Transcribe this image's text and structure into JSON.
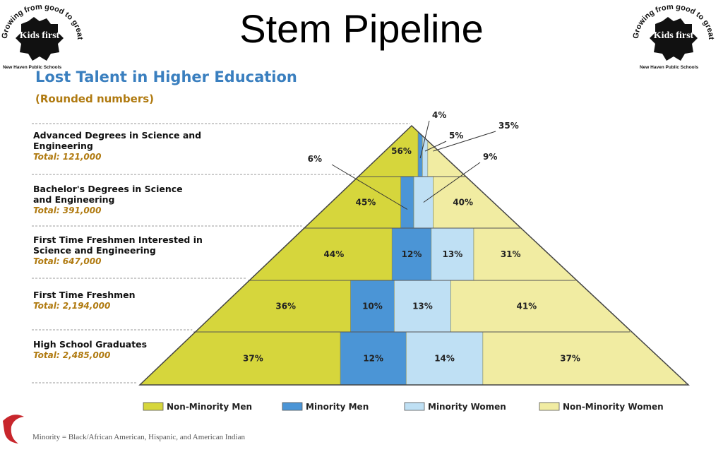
{
  "slide_title": "Stem Pipeline",
  "logo": {
    "tagline": "Growing from good to great",
    "name": "Kids first",
    "district": "New Haven Public Schools"
  },
  "footnote": "Minority = Black/African American, Hispanic, and American Indian",
  "chart_data": {
    "type": "pyramid",
    "title": "Lost Talent in Higher Education",
    "subtitle": "(Rounded numbers)",
    "categories": [
      "Advanced Degrees in Science and Engineering",
      "Bachelor's Degrees in Science and Engineering",
      "First Time Freshmen Interested in Science and Engineering",
      "First Time Freshmen",
      "High School Graduates"
    ],
    "totals": {
      "values": [
        121000,
        391000,
        647000,
        2194000,
        2485000
      ],
      "value_labels": [
        "Total: 121,000",
        "Total: 391,000",
        "Total: 647,000",
        "Total: 2,194,000",
        "Total: 2,485,000"
      ]
    },
    "series": [
      {
        "name": "Non-Minority Men",
        "color": "#d6d63c",
        "values": [
          56,
          45,
          44,
          36,
          37
        ],
        "value_labels": [
          "56%",
          "45%",
          "44%",
          "36%",
          "37%"
        ]
      },
      {
        "name": "Minority Men",
        "color": "#4b95d6",
        "values": [
          4,
          6,
          12,
          10,
          12
        ],
        "value_labels": [
          "4%",
          "6%",
          "12%",
          "10%",
          "12%"
        ]
      },
      {
        "name": "Minority Women",
        "color": "#bfe0f4",
        "values": [
          5,
          9,
          13,
          13,
          14
        ],
        "value_labels": [
          "5%",
          "9%",
          "13%",
          "13%",
          "14%"
        ]
      },
      {
        "name": "Non-Minority Women",
        "color": "#f1eca2",
        "values": [
          35,
          40,
          31,
          41,
          37
        ],
        "value_labels": [
          "35%",
          "40%",
          "31%",
          "41%",
          "37%"
        ]
      }
    ]
  }
}
